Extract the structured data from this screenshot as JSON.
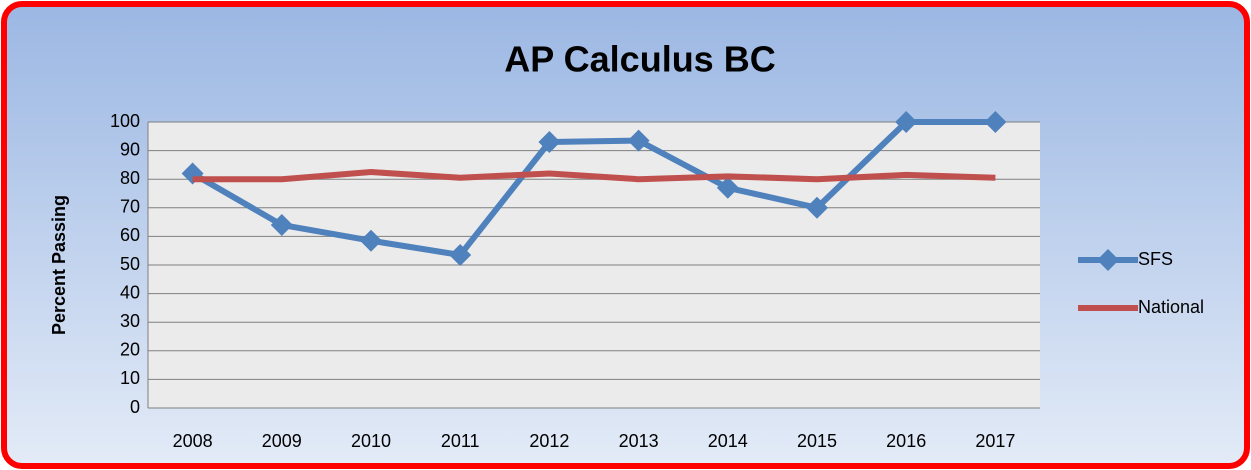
{
  "chart_data": {
    "type": "line",
    "title": "AP Calculus BC",
    "y_label": "Percent Passing",
    "categories": [
      "2008",
      "2009",
      "2010",
      "2011",
      "2012",
      "2013",
      "2014",
      "2015",
      "2016",
      "2017"
    ],
    "series": [
      {
        "name": "SFS",
        "color": "#4f81bd",
        "marker": "diamond",
        "values": [
          82,
          64,
          58.5,
          53.5,
          93,
          93.5,
          77,
          70,
          100,
          100
        ]
      },
      {
        "name": "National",
        "color": "#c0504d",
        "values": [
          80,
          80,
          82.5,
          80.5,
          82,
          80,
          81,
          80,
          81.5,
          80.5
        ]
      }
    ],
    "ylim": [
      0,
      100
    ],
    "yticks": [
      0,
      10,
      20,
      30,
      40,
      50,
      60,
      70,
      80,
      90,
      100
    ],
    "grid": true,
    "legend": "right"
  }
}
